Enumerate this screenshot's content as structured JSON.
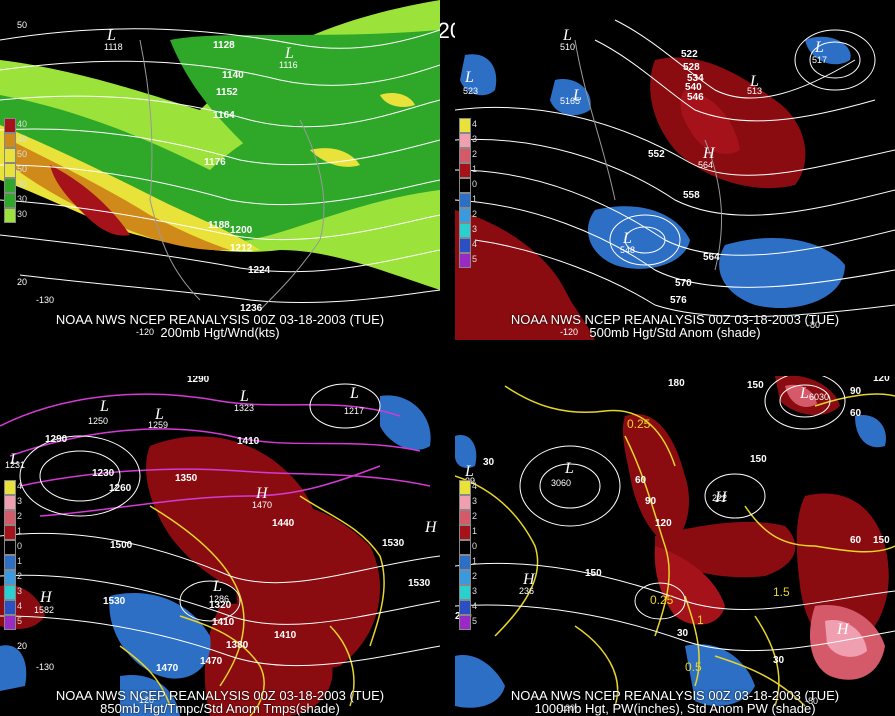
{
  "main_title": "00Z 03-18-2003 (TUE)",
  "panels": {
    "tl": {
      "line1": "NOAA NWS NCEP REANALYSIS 00Z 03-18-2003 (TUE)",
      "line2": "200mb Hgt/Wnd(kts)",
      "legend": [
        "40",
        "40",
        "50",
        "50",
        "30",
        "30",
        "30"
      ],
      "contours": [
        "1128",
        "1140",
        "1152",
        "1164",
        "1176",
        "1188",
        "1200",
        "1212",
        "1224",
        "1236"
      ],
      "lows": [
        "1116",
        "1118"
      ],
      "lat": [
        "50",
        "20"
      ],
      "lon": [
        "-130",
        "-120"
      ]
    },
    "tr": {
      "line1": "NOAA NWS NCEP REANALYSIS 00Z 03-18-2003 (TUE)",
      "line2": "500mb Hgt/Std Anom (shade)",
      "legend": [
        "4",
        "3",
        "2",
        "1",
        "0",
        "1",
        "2",
        "3",
        "4",
        "5"
      ],
      "contours": [
        "522",
        "528",
        "534",
        "540",
        "546",
        "552",
        "558",
        "564",
        "570",
        "576"
      ],
      "centers": [
        "523",
        "510",
        "5165",
        "517",
        "513",
        "548",
        "564"
      ],
      "lon": [
        "-120",
        "-80"
      ]
    },
    "bl": {
      "line1": "NOAA NWS NCEP REANALYSIS 00Z 03-18-2003 (TUE)",
      "line2": "850mb Hgt/Tmpc/Std Anom Tmps(shade)",
      "legend": [
        "4",
        "3",
        "2",
        "1",
        "0",
        "1",
        "2",
        "3",
        "4",
        "5"
      ],
      "contours": [
        "1290",
        "1260",
        "1230",
        "1350",
        "1410",
        "1440",
        "1500",
        "1530",
        "1320",
        "1380",
        "1470",
        "1380",
        "1320",
        "1410",
        "1500",
        "1530"
      ],
      "centers": [
        "1231",
        "1250",
        "1259",
        "1323",
        "1217",
        "1260",
        "1470",
        "1286",
        "1582"
      ],
      "lat": [
        "20"
      ],
      "lon": [
        "-130",
        "-120"
      ]
    },
    "br": {
      "line1": "NOAA NWS NCEP REANALYSIS 00Z 03-18-2003 (TUE)",
      "line2": "1000mb Hgt, PW(inches), Std Anom PW (shade)",
      "legend": [
        "4",
        "3",
        "2",
        "1",
        "0",
        "1",
        "2",
        "3",
        "4",
        "5"
      ],
      "contours": [
        "180",
        "150",
        "120",
        "90",
        "60",
        "30",
        "210",
        "150",
        "0.25",
        "0.5",
        "1",
        "1.5"
      ],
      "centers": [
        "39",
        "3060",
        "222",
        "236",
        "6030",
        "120",
        "90",
        "60"
      ],
      "lon": [
        "-120",
        "-80"
      ]
    }
  },
  "colors": {
    "wind_light": "#9be33a",
    "wind_mid": "#2fa82a",
    "wind_yellow": "#e8e23a",
    "wind_orange": "#d08a1a",
    "wind_red": "#a5121a",
    "anom_red": "#8a0c10",
    "anom_blue": "#2c6fc4",
    "pw_yellow": "#e6d52a",
    "temp_magenta": "#d43ad4"
  }
}
